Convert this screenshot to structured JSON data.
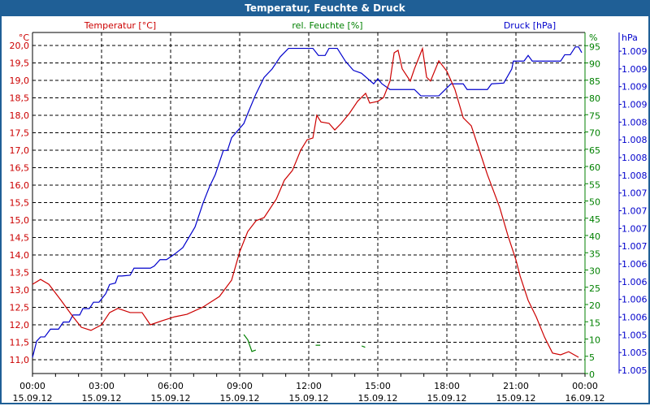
{
  "window": {
    "title": "Temperatur, Feuchte & Druck"
  },
  "colors": {
    "temperature": "#cc0000",
    "humidity": "#008000",
    "pressure": "#0000cc",
    "titlebar": "#1f5f96"
  },
  "chart_data": {
    "type": "line",
    "title": "Temperatur, Feuchte & Druck",
    "legend": [
      "Temperatur [°C]",
      "rel. Feuchte [%]",
      "Druck [hPa]"
    ],
    "x_unit": "hours since 15.09.12 00:00",
    "xlim": [
      0,
      24
    ],
    "x_ticks": [
      {
        "h": 0,
        "time": "00:00",
        "date": "15.09.12"
      },
      {
        "h": 3,
        "time": "03:00",
        "date": "15.09.12"
      },
      {
        "h": 6,
        "time": "06:00",
        "date": "15.09.12"
      },
      {
        "h": 9,
        "time": "09:00",
        "date": "15.09.12"
      },
      {
        "h": 12,
        "time": "12:00",
        "date": "15.09.12"
      },
      {
        "h": 15,
        "time": "15:00",
        "date": "15.09.12"
      },
      {
        "h": 18,
        "time": "18:00",
        "date": "15.09.12"
      },
      {
        "h": 21,
        "time": "21:00",
        "date": "15.09.12"
      },
      {
        "h": 24,
        "time": "00:00",
        "date": "16.09.12"
      }
    ],
    "axes": {
      "temperature": {
        "unit": "°C",
        "ylim": [
          10.6,
          20.37
        ],
        "ticks": [
          "11,0",
          "11,5",
          "12,0",
          "12,5",
          "13,0",
          "13,5",
          "14,0",
          "14,5",
          "15,0",
          "15,5",
          "16,0",
          "16,5",
          "17,0",
          "17,5",
          "18,0",
          "18,5",
          "19,0",
          "19,5",
          "20,0"
        ],
        "tick_values": [
          11,
          11.5,
          12,
          12.5,
          13,
          13.5,
          14,
          14.5,
          15,
          15.5,
          16,
          16.5,
          17,
          17.5,
          18,
          18.5,
          19,
          19.5,
          20
        ]
      },
      "humidity": {
        "unit": "%",
        "ylim": [
          0,
          98.8
        ],
        "ticks": [
          "0",
          "5",
          "10",
          "15",
          "20",
          "25",
          "30",
          "35",
          "40",
          "45",
          "50",
          "55",
          "60",
          "65",
          "70",
          "75",
          "80",
          "85",
          "90",
          "95"
        ]
      },
      "pressure": {
        "unit": "hPa",
        "ylim": [
          1004.75,
          1009.25
        ],
        "tick_values": [
          1004.75,
          1005,
          1005.25,
          1005.5,
          1005.75,
          1006,
          1006.25,
          1006.5,
          1006.75,
          1007,
          1007.25,
          1007.5,
          1007.75,
          1008,
          1008.25,
          1008.5,
          1008.75,
          1009,
          1009.25
        ],
        "ticks": [
          "1.005",
          "1.005",
          "1.005",
          "1.006",
          "1.006",
          "1.006",
          "1.006",
          "1.007",
          "1.007",
          "1.007",
          "1.007",
          "1.008",
          "1.008",
          "1.008",
          "1.008",
          "1.009",
          "1.009",
          "1.009",
          "1.009"
        ]
      }
    },
    "series": [
      {
        "name": "Temperatur [°C]",
        "axis": "temperature",
        "points": [
          [
            0,
            13.16
          ],
          [
            0.35,
            13.3
          ],
          [
            0.71,
            13.16
          ],
          [
            1.24,
            12.7
          ],
          [
            1.76,
            12.23
          ],
          [
            2.12,
            11.93
          ],
          [
            2.54,
            11.84
          ],
          [
            3.0,
            12.0
          ],
          [
            3.35,
            12.35
          ],
          [
            3.71,
            12.47
          ],
          [
            4.24,
            12.35
          ],
          [
            4.76,
            12.35
          ],
          [
            5.12,
            12.0
          ],
          [
            5.65,
            12.12
          ],
          [
            6.18,
            12.23
          ],
          [
            6.71,
            12.3
          ],
          [
            7.41,
            12.51
          ],
          [
            8.12,
            12.81
          ],
          [
            8.65,
            13.28
          ],
          [
            9.0,
            14.09
          ],
          [
            9.35,
            14.67
          ],
          [
            9.71,
            14.98
          ],
          [
            10.06,
            15.07
          ],
          [
            10.59,
            15.6
          ],
          [
            10.94,
            16.14
          ],
          [
            11.29,
            16.42
          ],
          [
            11.65,
            17.0
          ],
          [
            11.93,
            17.3
          ],
          [
            12.18,
            17.35
          ],
          [
            12.35,
            18.0
          ],
          [
            12.53,
            17.81
          ],
          [
            12.88,
            17.77
          ],
          [
            13.13,
            17.58
          ],
          [
            13.41,
            17.77
          ],
          [
            13.76,
            18.05
          ],
          [
            14.12,
            18.4
          ],
          [
            14.47,
            18.63
          ],
          [
            14.65,
            18.35
          ],
          [
            15.0,
            18.4
          ],
          [
            15.25,
            18.51
          ],
          [
            15.53,
            18.98
          ],
          [
            15.71,
            19.79
          ],
          [
            15.88,
            19.86
          ],
          [
            16.06,
            19.33
          ],
          [
            16.41,
            18.98
          ],
          [
            16.59,
            19.33
          ],
          [
            16.94,
            19.91
          ],
          [
            17.12,
            19.09
          ],
          [
            17.29,
            18.98
          ],
          [
            17.65,
            19.56
          ],
          [
            18.0,
            19.26
          ],
          [
            18.35,
            18.74
          ],
          [
            18.71,
            17.93
          ],
          [
            19.06,
            17.7
          ],
          [
            19.41,
            17.0
          ],
          [
            19.76,
            16.3
          ],
          [
            20.29,
            15.37
          ],
          [
            20.65,
            14.56
          ],
          [
            21.0,
            13.86
          ],
          [
            21.18,
            13.4
          ],
          [
            21.53,
            12.7
          ],
          [
            21.88,
            12.23
          ],
          [
            22.24,
            11.65
          ],
          [
            22.59,
            11.19
          ],
          [
            22.94,
            11.14
          ],
          [
            23.29,
            11.23
          ],
          [
            23.72,
            11.07
          ]
        ]
      },
      {
        "name": "rel. Feuchte [%]",
        "axis": "humidity",
        "segments": [
          [
            [
              9.18,
              11.3
            ],
            [
              9.35,
              9.8
            ],
            [
              9.53,
              6.4
            ],
            [
              9.7,
              6.8
            ]
          ],
          [
            [
              12.3,
              8.2
            ],
            [
              12.5,
              8.2
            ]
          ],
          [
            [
              14.3,
              8.0
            ],
            [
              14.45,
              7.6
            ]
          ]
        ]
      },
      {
        "name": "Druck [hPa]",
        "axis": "pressure",
        "points": [
          [
            0,
            1004.93
          ],
          [
            0.18,
            1005.16
          ],
          [
            0.35,
            1005.22
          ],
          [
            0.53,
            1005.22
          ],
          [
            0.78,
            1005.33
          ],
          [
            1.13,
            1005.33
          ],
          [
            1.34,
            1005.43
          ],
          [
            1.59,
            1005.43
          ],
          [
            1.76,
            1005.53
          ],
          [
            2.05,
            1005.53
          ],
          [
            2.19,
            1005.62
          ],
          [
            2.47,
            1005.62
          ],
          [
            2.65,
            1005.71
          ],
          [
            2.89,
            1005.71
          ],
          [
            3.18,
            1005.83
          ],
          [
            3.35,
            1005.96
          ],
          [
            3.6,
            1005.98
          ],
          [
            3.71,
            1006.08
          ],
          [
            3.88,
            1006.08
          ],
          [
            4.24,
            1006.09
          ],
          [
            4.41,
            1006.19
          ],
          [
            4.66,
            1006.19
          ],
          [
            5.12,
            1006.19
          ],
          [
            5.29,
            1006.22
          ],
          [
            5.54,
            1006.31
          ],
          [
            5.82,
            1006.31
          ],
          [
            6.18,
            1006.39
          ],
          [
            6.53,
            1006.48
          ],
          [
            7.06,
            1006.77
          ],
          [
            7.41,
            1007.11
          ],
          [
            7.69,
            1007.34
          ],
          [
            7.94,
            1007.51
          ],
          [
            8.29,
            1007.85
          ],
          [
            8.47,
            1007.85
          ],
          [
            8.65,
            1008.03
          ],
          [
            9.18,
            1008.23
          ],
          [
            9.35,
            1008.37
          ],
          [
            9.71,
            1008.65
          ],
          [
            10.06,
            1008.88
          ],
          [
            10.41,
            1009.0
          ],
          [
            10.76,
            1009.17
          ],
          [
            11.12,
            1009.29
          ],
          [
            11.47,
            1009.29
          ],
          [
            12.18,
            1009.29
          ],
          [
            12.42,
            1009.19
          ],
          [
            12.71,
            1009.19
          ],
          [
            12.88,
            1009.29
          ],
          [
            13.24,
            1009.29
          ],
          [
            13.59,
            1009.11
          ],
          [
            13.94,
            1008.98
          ],
          [
            14.29,
            1008.94
          ],
          [
            14.82,
            1008.79
          ],
          [
            15.0,
            1008.86
          ],
          [
            15.18,
            1008.79
          ],
          [
            15.53,
            1008.71
          ],
          [
            16.59,
            1008.71
          ],
          [
            16.87,
            1008.62
          ],
          [
            17.65,
            1008.62
          ],
          [
            17.93,
            1008.71
          ],
          [
            18.18,
            1008.79
          ],
          [
            18.71,
            1008.79
          ],
          [
            18.88,
            1008.71
          ],
          [
            19.76,
            1008.71
          ],
          [
            19.94,
            1008.79
          ],
          [
            20.47,
            1008.8
          ],
          [
            20.82,
            1009.0
          ],
          [
            20.89,
            1009.11
          ],
          [
            21.35,
            1009.11
          ],
          [
            21.53,
            1009.19
          ],
          [
            21.71,
            1009.11
          ],
          [
            22.94,
            1009.11
          ],
          [
            23.12,
            1009.2
          ],
          [
            23.36,
            1009.2
          ],
          [
            23.58,
            1009.31
          ],
          [
            23.72,
            1009.31
          ],
          [
            23.86,
            1009.23
          ]
        ]
      }
    ]
  }
}
